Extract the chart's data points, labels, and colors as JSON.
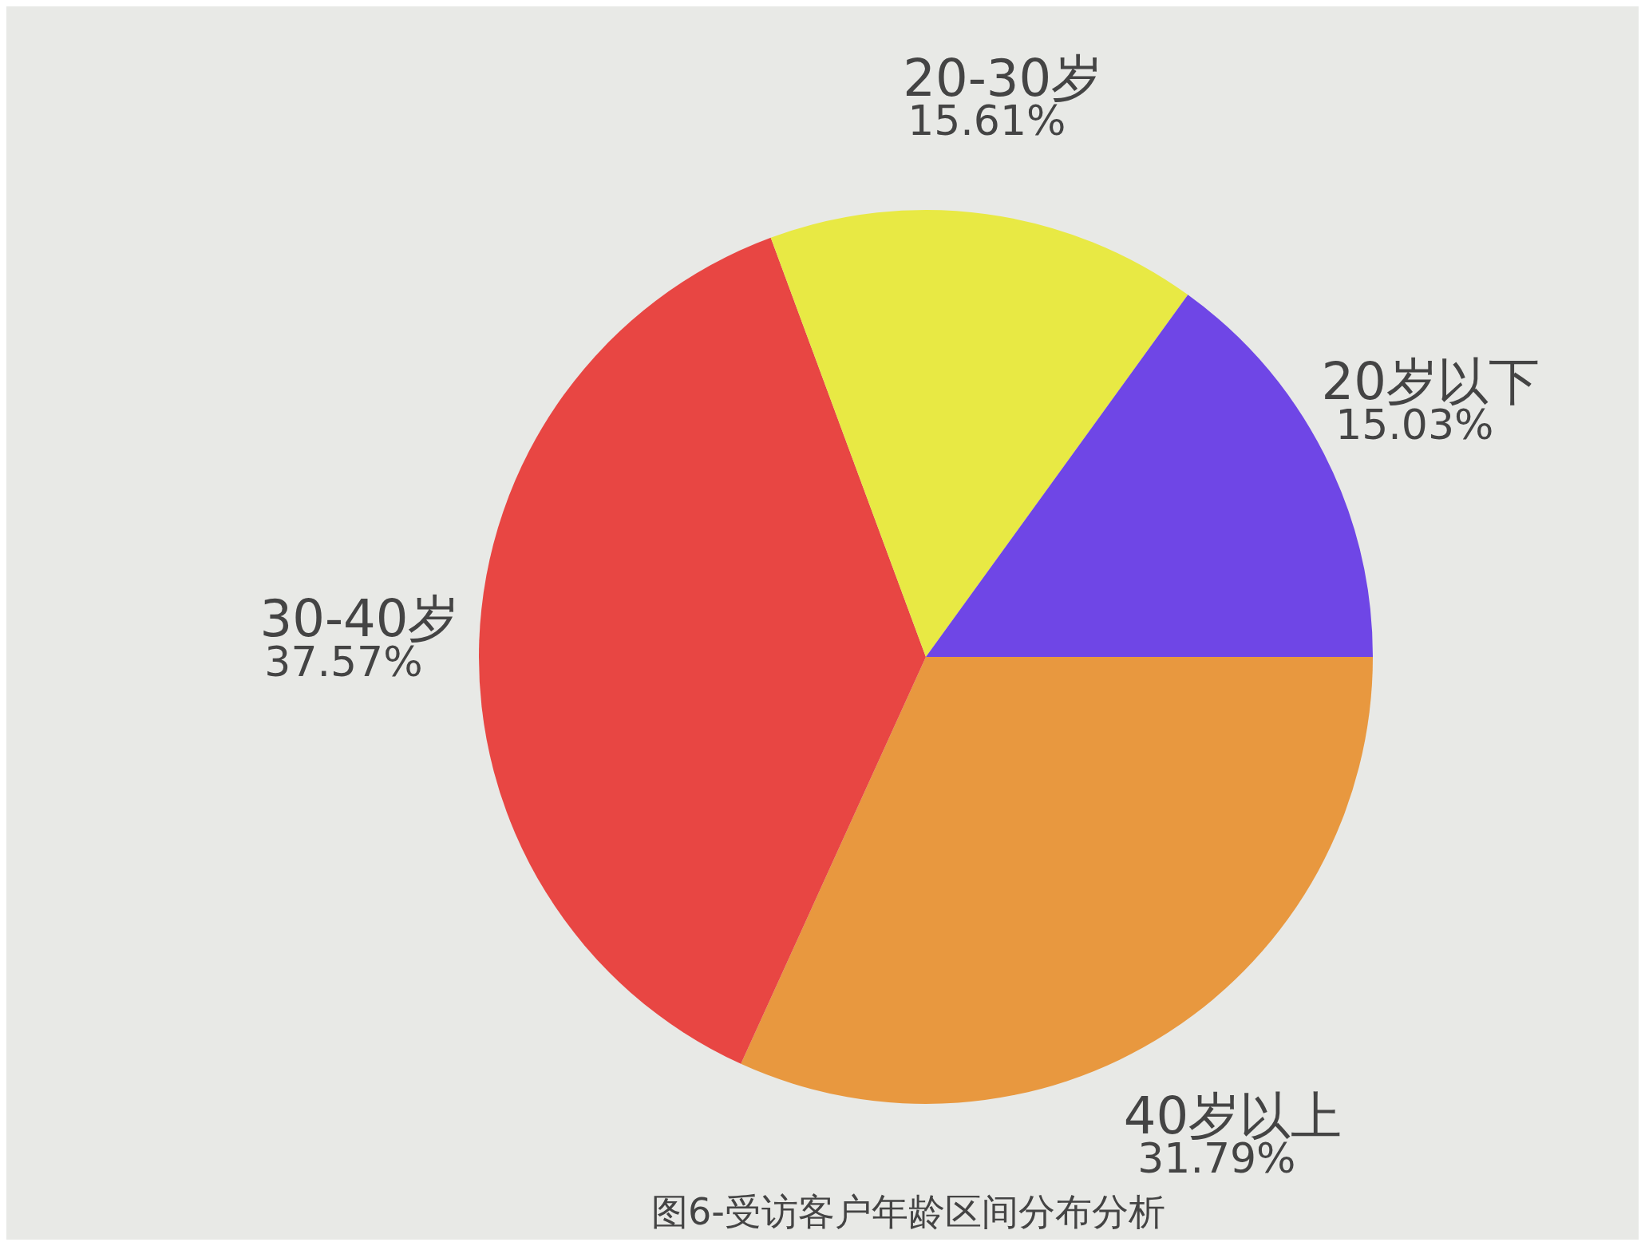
{
  "chart_data": {
    "type": "pie",
    "title": "图6-受访客户年龄区间分布分析",
    "categories": [
      "40岁以上",
      "30-40岁",
      "20-30岁",
      "20岁以下"
    ],
    "values": [
      31.79,
      37.57,
      15.61,
      15.03
    ],
    "value_labels": [
      "31.79%",
      "37.57%",
      "15.61%",
      "15.03%"
    ],
    "colors": [
      "#e8983f",
      "#e84643",
      "#e8e944",
      "#6f46e6"
    ],
    "legend": false
  }
}
